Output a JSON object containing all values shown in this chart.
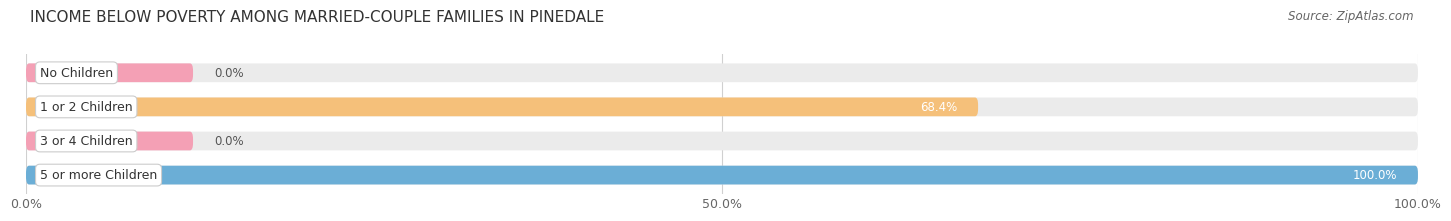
{
  "title": "INCOME BELOW POVERTY AMONG MARRIED-COUPLE FAMILIES IN PINEDALE",
  "source": "Source: ZipAtlas.com",
  "categories": [
    "No Children",
    "1 or 2 Children",
    "3 or 4 Children",
    "5 or more Children"
  ],
  "values": [
    0.0,
    68.4,
    0.0,
    100.0
  ],
  "bar_colors": [
    "#f4a0b5",
    "#f5c07a",
    "#f4a0b5",
    "#6baed6"
  ],
  "label_colors": [
    "#555555",
    "#ffffff",
    "#555555",
    "#ffffff"
  ],
  "bg_bar_color": "#ebebeb",
  "xlim": [
    0,
    100
  ],
  "xticks": [
    0.0,
    50.0,
    100.0
  ],
  "xtick_labels": [
    "0.0%",
    "50.0%",
    "100.0%"
  ],
  "title_fontsize": 11,
  "source_fontsize": 8.5,
  "tick_fontsize": 9,
  "label_fontsize": 9,
  "bar_label_fontsize": 8.5,
  "background_color": "#ffffff",
  "grid_color": "#d0d0d0"
}
